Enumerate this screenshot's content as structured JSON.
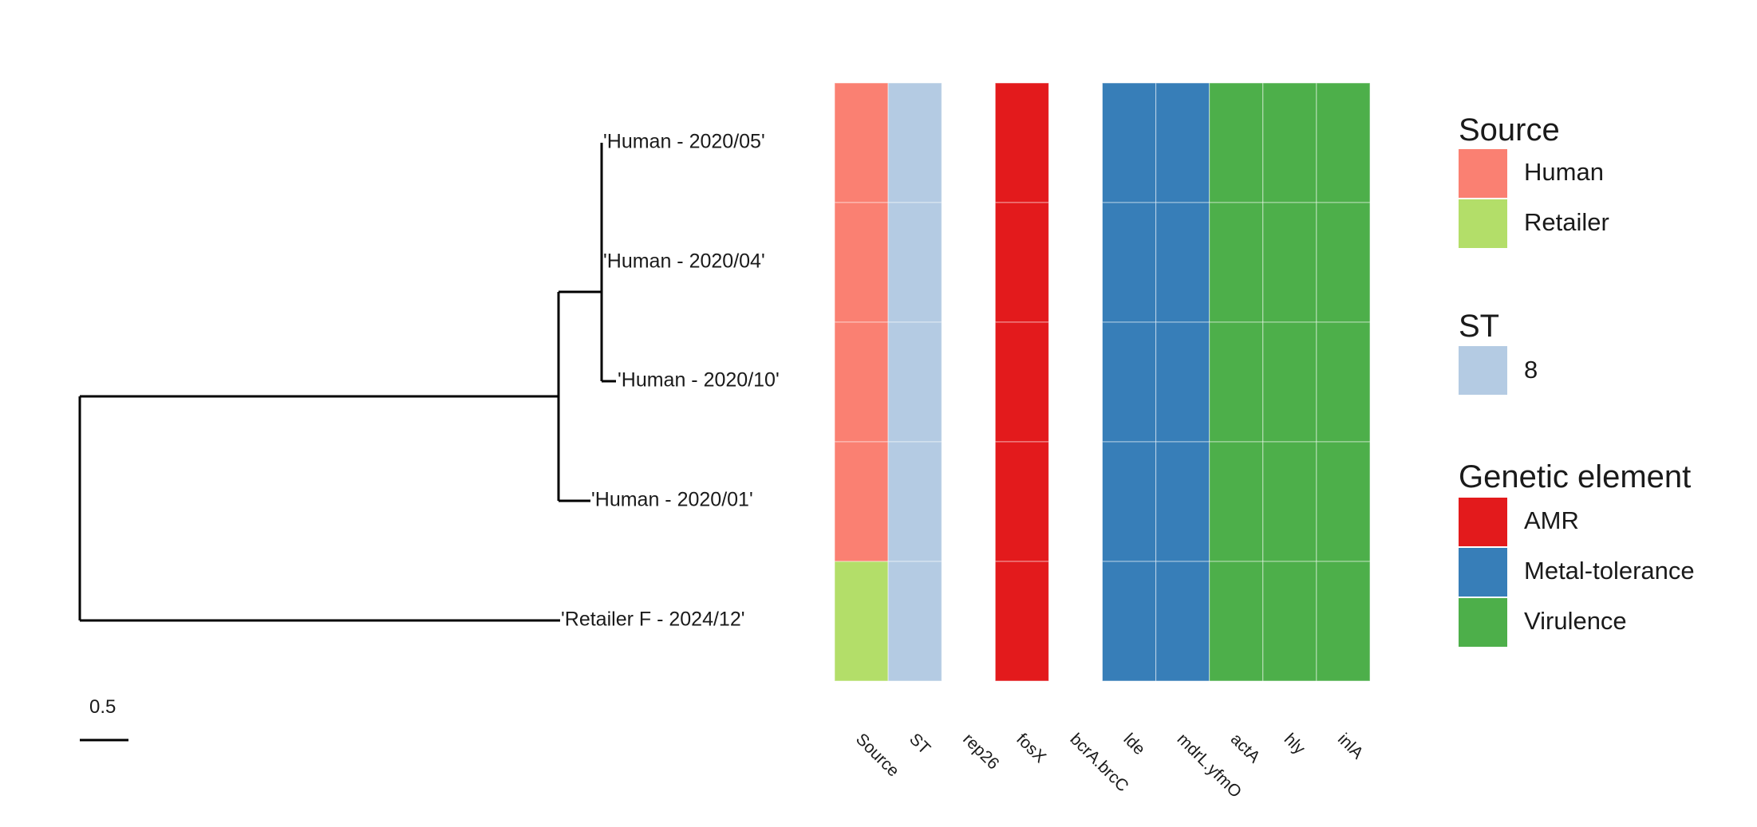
{
  "tree": {
    "tips": [
      "'Human - 2020/05'",
      "'Human - 2020/04'",
      "'Human - 2020/10'",
      "'Human - 2020/01'",
      "'Retailer F - 2024/12'"
    ],
    "scale_label": "0.5"
  },
  "heatmap": {
    "columns": [
      "Source",
      "ST",
      "rep26",
      "fosX",
      "bcrA.brcC",
      "lde",
      "mdrL.yfmO",
      "actA",
      "hly",
      "inlA"
    ],
    "rows": [
      [
        "Human",
        "8",
        null,
        "AMR",
        null,
        "Metal-tolerance",
        "Metal-tolerance",
        "Virulence",
        "Virulence",
        "Virulence"
      ],
      [
        "Human",
        "8",
        null,
        "AMR",
        null,
        "Metal-tolerance",
        "Metal-tolerance",
        "Virulence",
        "Virulence",
        "Virulence"
      ],
      [
        "Human",
        "8",
        null,
        "AMR",
        null,
        "Metal-tolerance",
        "Metal-tolerance",
        "Virulence",
        "Virulence",
        "Virulence"
      ],
      [
        "Human",
        "8",
        null,
        "AMR",
        null,
        "Metal-tolerance",
        "Metal-tolerance",
        "Virulence",
        "Virulence",
        "Virulence"
      ],
      [
        "Retailer",
        "8",
        null,
        "AMR",
        null,
        "Metal-tolerance",
        "Metal-tolerance",
        "Virulence",
        "Virulence",
        "Virulence"
      ]
    ]
  },
  "legend": [
    {
      "title": "Source",
      "items": [
        {
          "label": "Human",
          "color": "#fa8072"
        },
        {
          "label": "Retailer",
          "color": "#b3de69"
        }
      ]
    },
    {
      "title": "ST",
      "items": [
        {
          "label": "8",
          "color": "#b4cbe3"
        }
      ]
    },
    {
      "title": "Genetic element",
      "items": [
        {
          "label": "AMR",
          "color": "#e31a1c"
        },
        {
          "label": "Metal-tolerance",
          "color": "#377eb8"
        },
        {
          "label": "Virulence",
          "color": "#4daf4a"
        }
      ]
    }
  ]
}
